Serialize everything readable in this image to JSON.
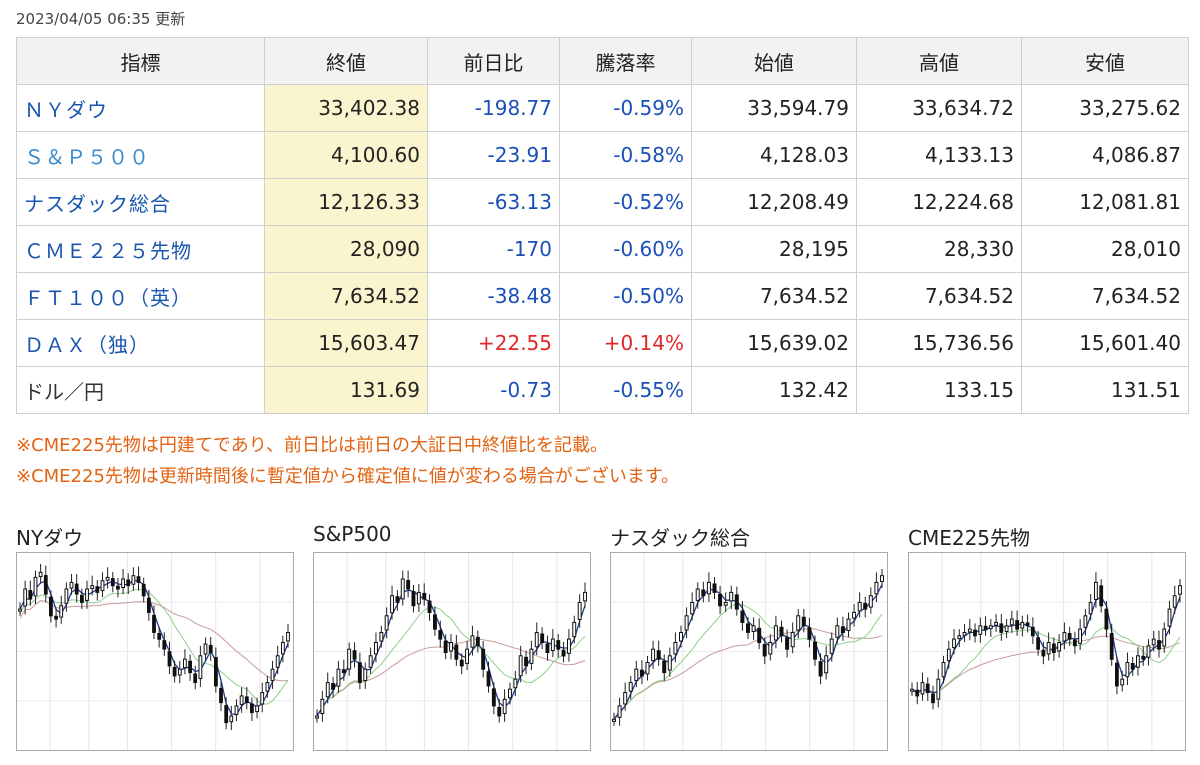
{
  "updated": "2023/04/05 06:35 更新",
  "table": {
    "headers": [
      "指標",
      "終値",
      "前日比",
      "騰落率",
      "始値",
      "高値",
      "安値"
    ],
    "rows": [
      {
        "name": "ＮＹダウ",
        "close": "33,402.38",
        "change": "-198.77",
        "pct": "-0.59%",
        "open": "33,594.79",
        "high": "33,634.72",
        "low": "33,275.62"
      },
      {
        "name": "Ｓ＆Ｐ５００",
        "close": "4,100.60",
        "change": "-23.91",
        "pct": "-0.58%",
        "open": "4,128.03",
        "high": "4,133.13",
        "low": "4,086.87"
      },
      {
        "name": "ナスダック総合",
        "close": "12,126.33",
        "change": "-63.13",
        "pct": "-0.52%",
        "open": "12,208.49",
        "high": "12,224.68",
        "low": "12,081.81"
      },
      {
        "name": "ＣＭＥ２２５先物",
        "close": "28,090",
        "change": "-170",
        "pct": "-0.60%",
        "open": "28,195",
        "high": "28,330",
        "low": "28,010"
      },
      {
        "name": "ＦＴ１００（英）",
        "close": "7,634.52",
        "change": "-38.48",
        "pct": "-0.50%",
        "open": "7,634.52",
        "high": "7,634.52",
        "low": "7,634.52"
      },
      {
        "name": "ＤＡＸ（独）",
        "close": "15,603.47",
        "change": "+22.55",
        "pct": "+0.14%",
        "open": "15,639.02",
        "high": "15,736.56",
        "low": "15,601.40"
      },
      {
        "name": "ドル／円",
        "close": "131.69",
        "change": "-0.73",
        "pct": "-0.55%",
        "open": "132.42",
        "high": "133.15",
        "low": "131.51"
      }
    ]
  },
  "notes": [
    "※CME225先物は円建てであり、前日比は前日の大証日中終値比を記載。",
    "※CME225先物は更新時間後に暫定値から確定値に値が変わる場合がございます。"
  ],
  "charts": [
    {
      "title": "NYダウ",
      "closes": [
        0.76,
        0.88,
        0.82,
        0.95,
        0.98,
        0.85,
        0.72,
        0.7,
        0.78,
        0.88,
        0.92,
        0.85,
        0.8,
        0.88,
        0.9,
        0.86,
        0.93,
        0.95,
        0.9,
        0.88,
        0.94,
        0.9,
        0.96,
        0.92,
        0.84,
        0.74,
        0.62,
        0.58,
        0.52,
        0.42,
        0.36,
        0.4,
        0.46,
        0.38,
        0.32,
        0.48,
        0.55,
        0.5,
        0.3,
        0.2,
        0.08,
        0.12,
        0.18,
        0.24,
        0.2,
        0.14,
        0.18,
        0.26,
        0.32,
        0.4,
        0.48,
        0.56,
        0.62
      ]
    },
    {
      "title": "S&P500",
      "closes": [
        0.12,
        0.22,
        0.32,
        0.28,
        0.4,
        0.38,
        0.52,
        0.46,
        0.32,
        0.4,
        0.48,
        0.56,
        0.62,
        0.72,
        0.84,
        0.8,
        0.94,
        0.88,
        0.78,
        0.86,
        0.82,
        0.74,
        0.64,
        0.58,
        0.5,
        0.56,
        0.46,
        0.42,
        0.52,
        0.6,
        0.54,
        0.4,
        0.3,
        0.18,
        0.12,
        0.22,
        0.28,
        0.34,
        0.48,
        0.42,
        0.52,
        0.62,
        0.56,
        0.5,
        0.58,
        0.52,
        0.48,
        0.58,
        0.68,
        0.8,
        0.86
      ]
    },
    {
      "title": "ナスダック総合",
      "closes": [
        0.1,
        0.18,
        0.26,
        0.32,
        0.4,
        0.36,
        0.44,
        0.52,
        0.46,
        0.38,
        0.48,
        0.56,
        0.62,
        0.72,
        0.8,
        0.88,
        0.84,
        0.92,
        0.86,
        0.78,
        0.8,
        0.86,
        0.76,
        0.68,
        0.62,
        0.66,
        0.56,
        0.48,
        0.56,
        0.66,
        0.6,
        0.52,
        0.62,
        0.72,
        0.66,
        0.58,
        0.46,
        0.36,
        0.48,
        0.58,
        0.66,
        0.62,
        0.7,
        0.74,
        0.8,
        0.76,
        0.84,
        0.92,
        0.96
      ]
    },
    {
      "title": "CME225先物",
      "closes": [
        0.28,
        0.24,
        0.32,
        0.26,
        0.2,
        0.34,
        0.44,
        0.52,
        0.58,
        0.6,
        0.62,
        0.64,
        0.6,
        0.66,
        0.64,
        0.66,
        0.68,
        0.62,
        0.66,
        0.7,
        0.64,
        0.68,
        0.66,
        0.6,
        0.52,
        0.48,
        0.56,
        0.5,
        0.56,
        0.62,
        0.58,
        0.54,
        0.64,
        0.72,
        0.8,
        0.92,
        0.78,
        0.64,
        0.46,
        0.3,
        0.34,
        0.44,
        0.4,
        0.48,
        0.46,
        0.54,
        0.58,
        0.52,
        0.64,
        0.76,
        0.84,
        0.9
      ]
    }
  ]
}
